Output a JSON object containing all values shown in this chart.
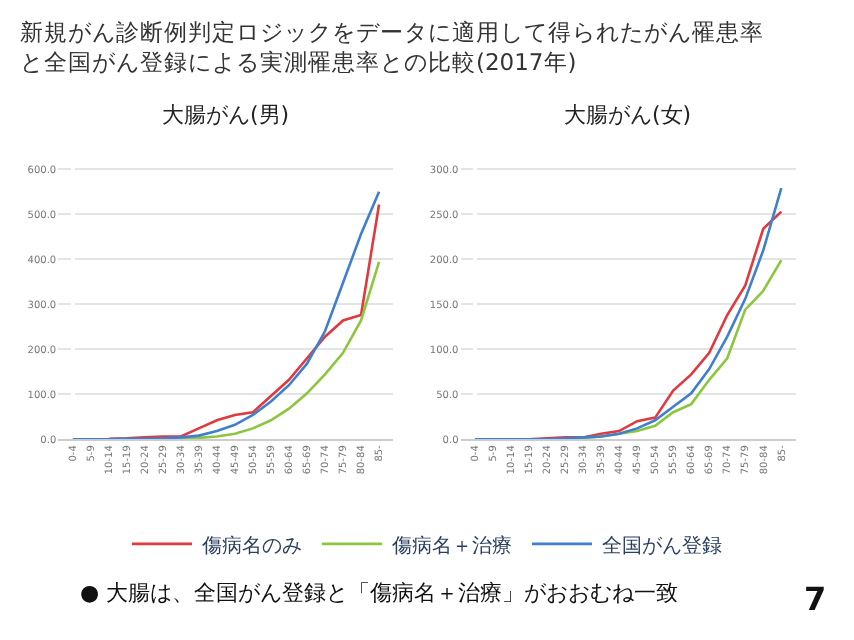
{
  "chart_data": [
    {
      "type": "line",
      "title": "大腸がん(男)",
      "annotations": [
        "新規がん診断例判定ロジックをデータに適用して得られたがん罹患率と全国がん登録による実測罹患率との比較(2017年)",
        "● 大腸は、全国がん登録と「傷病名＋治療」がおおむね一致",
        "7"
      ],
      "categories": [
        "0-4",
        "5-9",
        "10-14",
        "15-19",
        "20-24",
        "25-29",
        "30-34",
        "35-39",
        "40-44",
        "45-49",
        "50-54",
        "55-59",
        "60-64",
        "65-69",
        "70-74",
        "75-79",
        "80-84",
        "85-"
      ],
      "series": [
        {
          "name": "傷病名のみ",
          "color": "#e0393e",
          "values": [
            null,
            null,
            1,
            2,
            4,
            6,
            6,
            24,
            42,
            54,
            60,
            96,
            132,
            180,
            228,
            264,
            276,
            522
          ]
        },
        {
          "name": "傷病名＋治療",
          "color": "#8cc63f",
          "values": [
            null,
            null,
            null,
            null,
            null,
            1,
            2,
            3,
            6,
            12,
            24,
            42,
            68,
            102,
            144,
            192,
            264,
            394
          ]
        },
        {
          "name": "全国がん登録",
          "color": "#3f7fd0",
          "values": [
            0,
            0,
            0,
            1,
            1,
            2,
            4,
            8,
            18,
            32,
            54,
            84,
            120,
            168,
            240,
            348,
            456,
            550
          ]
        }
      ],
      "ylim": [
        0,
        630
      ],
      "yticks": [
        {
          "value": 0,
          "label": "0.0"
        },
        {
          "value": 100,
          "label": "100.0"
        },
        {
          "value": 200,
          "label": "200.0"
        },
        {
          "value": 300,
          "label": "300.0"
        },
        {
          "value": 400,
          "label": "400.0"
        },
        {
          "value": 500,
          "label": "500.0"
        },
        {
          "value": 600,
          "label": "600.0"
        }
      ],
      "grid": "y",
      "legend": "bottom",
      "marker": "none",
      "line_style": "solid"
    },
    {
      "type": "line",
      "title": "大腸がん(女)",
      "categories": [
        "0-4",
        "5-9",
        "10-14",
        "15-19",
        "20-24",
        "25-29",
        "30-34",
        "35-39",
        "40-44",
        "45-49",
        "50-54",
        "55-59",
        "60-64",
        "65-69",
        "70-74",
        "75-79",
        "80-84",
        "85-"
      ],
      "series": [
        {
          "name": "傷病名のみ",
          "color": "#e0393e",
          "values": [
            null,
            null,
            0,
            0,
            1,
            2,
            2,
            6,
            9,
            20,
            24,
            54,
            72,
            96,
            138,
            171,
            234,
            253
          ]
        },
        {
          "name": "傷病名＋治療",
          "color": "#8cc63f",
          "values": [
            null,
            null,
            null,
            null,
            null,
            1,
            1,
            3,
            6,
            9,
            15,
            30,
            39,
            66,
            90,
            144,
            165,
            199
          ]
        },
        {
          "name": "全国がん登録",
          "color": "#3f7fd0",
          "values": [
            0,
            0,
            0,
            0,
            0,
            1,
            2,
            3,
            6,
            12,
            21,
            36,
            51,
            78,
            114,
            156,
            210,
            279
          ]
        }
      ],
      "ylim": [
        0,
        315
      ],
      "yticks": [
        {
          "value": 0,
          "label": "0.0"
        },
        {
          "value": 50,
          "label": "50.0"
        },
        {
          "value": 100,
          "label": "100.0"
        },
        {
          "value": 150,
          "label": "150.0"
        },
        {
          "value": 200,
          "label": "200.0"
        },
        {
          "value": 250,
          "label": "250.0"
        },
        {
          "value": 300,
          "label": "300.0"
        }
      ],
      "grid": "y",
      "legend": "bottom",
      "marker": "none",
      "line_style": "solid"
    }
  ]
}
